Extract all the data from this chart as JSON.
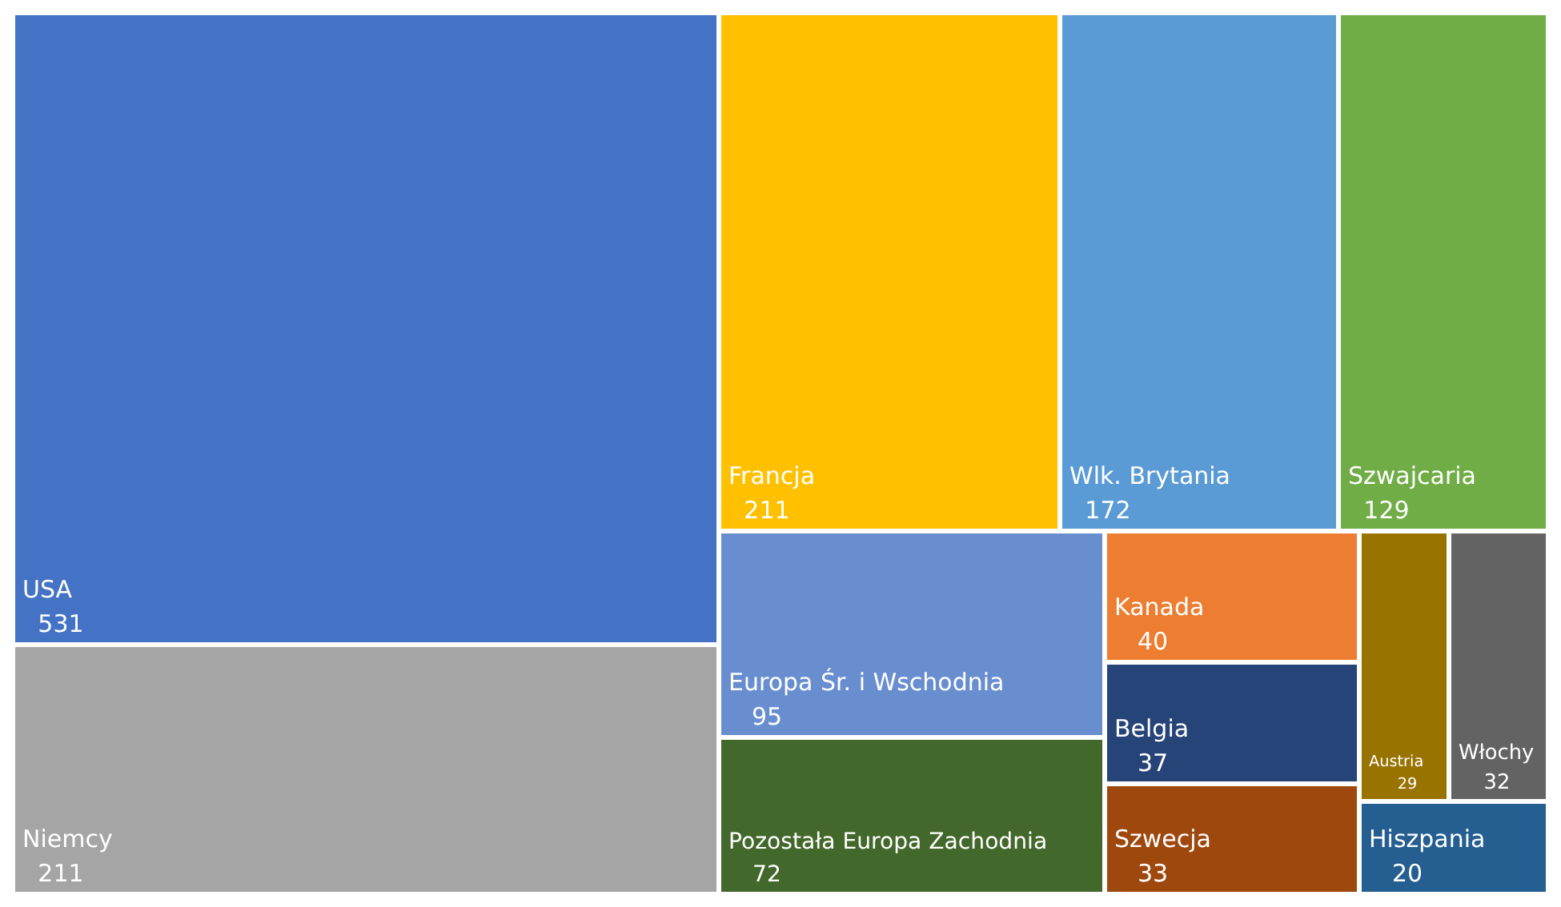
{
  "chart_data": {
    "type": "other",
    "categories": [
      "USA",
      "Niemcy",
      "Francja",
      "Wlk. Brytania",
      "Szwajcaria",
      "Europa Śr. i Wschodnia",
      "Pozostała Europa Zachodnia",
      "Kanada",
      "Belgia",
      "Szwecja",
      "Austria",
      "Włochy",
      "Hiszpania"
    ],
    "values": [
      531,
      211,
      211,
      172,
      129,
      95,
      72,
      40,
      37,
      33,
      29,
      32,
      20
    ],
    "colors": [
      "#4472c4",
      "#a5a5a5",
      "#ffc000",
      "#5b9bd5",
      "#70ad47",
      "#698ed0",
      "#43682b",
      "#ed7d31",
      "#264478",
      "#9e480e",
      "#997300",
      "#636363",
      "#255e91"
    ],
    "data_labels": true
  }
}
